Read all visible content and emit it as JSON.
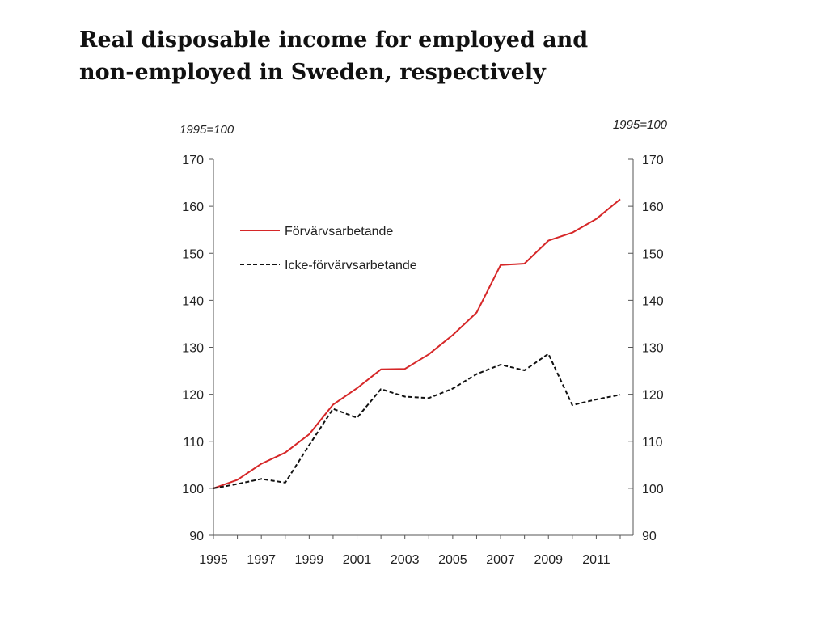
{
  "slide": {
    "title_line1": "Real disposable income for employed and",
    "title_line2": "non-employed in Sweden, respectively"
  },
  "chart_data": {
    "type": "line",
    "title": "Real disposable income for employed and non-employed in Sweden, respectively",
    "unit_left": "1995=100",
    "unit_right": "1995=100",
    "x": [
      1995,
      1996,
      1997,
      1998,
      1999,
      2000,
      2001,
      2002,
      2003,
      2004,
      2005,
      2006,
      2007,
      2008,
      2009,
      2010,
      2011,
      2012
    ],
    "x_tick_labels": [
      "1995",
      "1997",
      "1999",
      "2001",
      "2003",
      "2005",
      "2007",
      "2009",
      "2011"
    ],
    "xlim": [
      1995,
      2012
    ],
    "ylim": [
      90,
      170
    ],
    "y_ticks": [
      90,
      100,
      110,
      120,
      130,
      140,
      150,
      160,
      170
    ],
    "dual_y_axis": true,
    "grid": false,
    "legend_position": "top-left",
    "series": [
      {
        "name": "Förvärvsarbetande",
        "color": "#d62728",
        "style": "solid",
        "values": [
          100,
          101.8,
          105.2,
          107.6,
          111.5,
          117.8,
          121.3,
          125.3,
          125.4,
          128.5,
          132.6,
          137.4,
          147.5,
          147.8,
          152.7,
          154.4,
          157.3,
          161.5
        ]
      },
      {
        "name": "Icke-förvärvsarbetande",
        "color": "#111111",
        "style": "dashed",
        "values": [
          100,
          100.9,
          102,
          101.2,
          109.2,
          116.9,
          115,
          121.1,
          119.5,
          119.2,
          121.2,
          124.3,
          126.3,
          125.1,
          128.6,
          117.7,
          118.9,
          119.9
        ]
      }
    ]
  }
}
